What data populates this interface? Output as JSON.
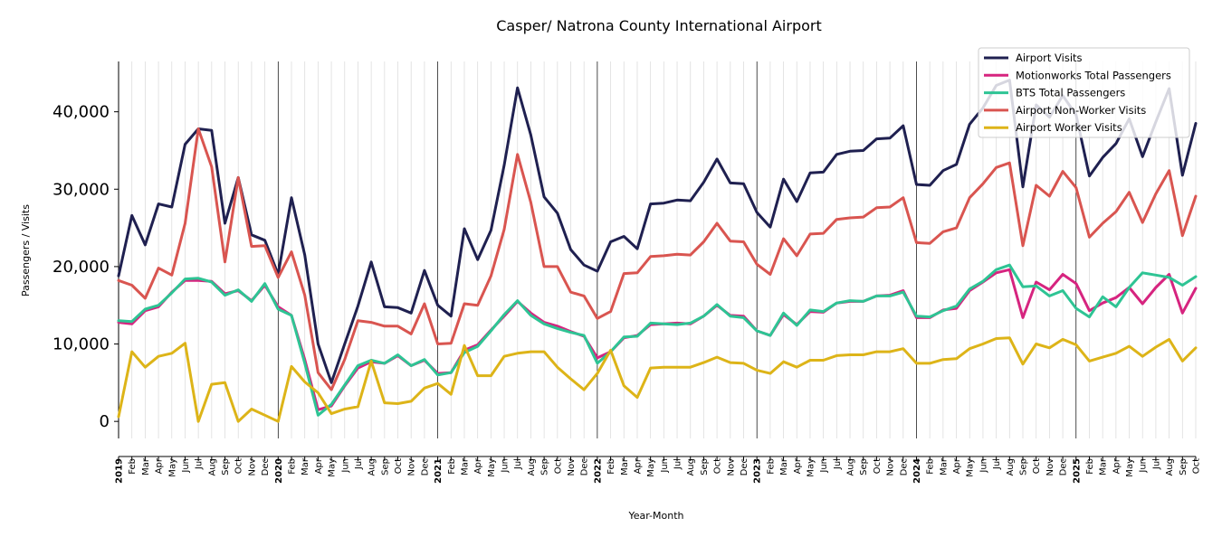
{
  "chart_data": {
    "type": "line",
    "title": "Casper/ Natrona County International Airport",
    "xlabel": "Year-Month",
    "ylabel": "Passengers / Visits",
    "ylim": [
      -2200,
      46500
    ],
    "yticks": [
      0,
      10000,
      20000,
      30000,
      40000
    ],
    "ytick_labels": [
      "0",
      "10,000",
      "20,000",
      "30,000",
      "40,000"
    ],
    "grid": "vertical monthly lines; bold lines at year starts",
    "legend_position": "top-right",
    "x": [
      "2019",
      "Feb",
      "Mar",
      "Apr",
      "May",
      "Jun",
      "Jul",
      "Aug",
      "Sep",
      "Oct",
      "Nov",
      "Dec",
      "2020",
      "Feb",
      "Mar",
      "Apr",
      "May",
      "Jun",
      "Jul",
      "Aug",
      "Sep",
      "Oct",
      "Nov",
      "Dec",
      "2021",
      "Feb",
      "Mar",
      "Apr",
      "May",
      "Jun",
      "Jul",
      "Aug",
      "Sep",
      "Oct",
      "Nov",
      "Dec",
      "2022",
      "Feb",
      "Mar",
      "Apr",
      "May",
      "Jun",
      "Jul",
      "Aug",
      "Sep",
      "Oct",
      "Nov",
      "Dec",
      "2023",
      "Feb",
      "Mar",
      "Apr",
      "May",
      "Jun",
      "Jul",
      "Aug",
      "Sep",
      "Oct",
      "Nov",
      "Dec",
      "2024",
      "Feb",
      "Mar",
      "Apr",
      "May",
      "Jun",
      "Jul",
      "Aug",
      "Sep",
      "Oct",
      "Nov",
      "Dec",
      "2025",
      "Feb",
      "Mar",
      "Apr",
      "May",
      "Jun",
      "Jul",
      "Aug",
      "Sep",
      "Oct"
    ],
    "year_labels": [
      "2019",
      "2020",
      "2021",
      "2022",
      "2023",
      "2024",
      "2025"
    ],
    "series": [
      {
        "name": "Airport Visits",
        "color": "#1f2050",
        "values": [
          18800,
          26600,
          22800,
          28100,
          27700,
          35800,
          37800,
          37600,
          25600,
          31500,
          24100,
          23400,
          19000,
          28900,
          21500,
          10000,
          5000,
          10000,
          14900,
          20600,
          14800,
          14700,
          14000,
          19500,
          15000,
          13600,
          24900,
          20900,
          24700,
          33100,
          43100,
          37000,
          29000,
          26900,
          22200,
          20200,
          19400,
          23200,
          23900,
          22300,
          28100,
          28200,
          28600,
          28500,
          30900,
          33900,
          30800,
          30700,
          27000,
          25100,
          31300,
          28400,
          32100,
          32200,
          34500,
          34900,
          35000,
          36500,
          36600,
          38200,
          30600,
          30500,
          32400,
          33200,
          38400,
          40500,
          43400,
          44100,
          30300,
          40900,
          39300,
          42100,
          39600,
          31700,
          34100,
          35900,
          39100,
          34200,
          38700,
          43000,
          31800,
          38500
        ]
      },
      {
        "name": "Motionworks Total Passengers",
        "color": "#d6247f",
        "values": [
          12800,
          12600,
          14300,
          14800,
          16700,
          18200,
          18200,
          18100,
          16500,
          16900,
          15600,
          17600,
          14800,
          13700,
          8000,
          1500,
          2000,
          4600,
          6900,
          7700,
          7500,
          8500,
          7200,
          7900,
          6200,
          6300,
          9200,
          9900,
          11800,
          13600,
          15500,
          14000,
          12800,
          12300,
          11600,
          11000,
          8200,
          9000,
          10800,
          11100,
          12500,
          12600,
          12700,
          12600,
          13600,
          15000,
          13700,
          13600,
          11700,
          11100,
          13800,
          12500,
          14200,
          14100,
          15300,
          15500,
          15500,
          16200,
          16300,
          16900,
          13400,
          13400,
          14400,
          14600,
          16900,
          18000,
          19200,
          19600,
          13400,
          18000,
          17000,
          19000,
          17800,
          14300,
          15300,
          16000,
          17300,
          15200,
          17300,
          19000,
          14000,
          17200
        ]
      },
      {
        "name": "BTS Total Passengers",
        "color": "#2ec494",
        "values": [
          13000,
          12900,
          14500,
          15000,
          16600,
          18400,
          18500,
          18000,
          16300,
          17000,
          15500,
          17800,
          14500,
          13700,
          7500,
          800,
          2200,
          4700,
          7200,
          7900,
          7500,
          8600,
          7200,
          8000,
          6000,
          6300,
          8900,
          9700,
          11700,
          13800,
          15600,
          13700,
          12600,
          12000,
          11500,
          11100,
          7500,
          9000,
          10900,
          11000,
          12700,
          12600,
          12500,
          12700,
          13600,
          15100,
          13600,
          13400,
          11700,
          11100,
          14000,
          12400,
          14400,
          14200,
          15300,
          15600,
          15500,
          16200,
          16200,
          16700,
          13600,
          13500,
          14300,
          14900,
          17100,
          18100,
          19600,
          20200,
          17400,
          17500,
          16200,
          16900,
          14600,
          13500,
          16100,
          14800,
          17300,
          19200,
          18900,
          18600,
          17600,
          18700
        ]
      },
      {
        "name": "Airport Non-Worker Visits",
        "color": "#d95550",
        "values": [
          18200,
          17600,
          15900,
          19800,
          18900,
          25600,
          37800,
          32900,
          20600,
          31500,
          22600,
          22700,
          18600,
          21900,
          16300,
          6300,
          4100,
          8000,
          13000,
          12800,
          12300,
          12300,
          11300,
          15200,
          10000,
          10100,
          15200,
          15000,
          18800,
          24800,
          34500,
          28300,
          20000,
          20000,
          16700,
          16200,
          13300,
          14200,
          19100,
          19200,
          21300,
          21400,
          21600,
          21500,
          23200,
          25600,
          23300,
          23200,
          20300,
          19000,
          23600,
          21400,
          24200,
          24300,
          26100,
          26300,
          26400,
          27600,
          27700,
          28900,
          23100,
          23000,
          24500,
          25000,
          28900,
          30700,
          32800,
          33400,
          22700,
          30500,
          29100,
          32300,
          30200,
          23800,
          25600,
          27100,
          29600,
          25700,
          29400,
          32400,
          24000,
          29100
        ]
      },
      {
        "name": "Airport Worker Visits",
        "color": "#ddb418",
        "values": [
          600,
          9000,
          7000,
          8400,
          8800,
          10100,
          0,
          4800,
          5000,
          0,
          1600,
          800,
          0,
          7100,
          5100,
          3700,
          1000,
          1600,
          1900,
          7800,
          2400,
          2300,
          2600,
          4300,
          4900,
          3500,
          9800,
          5900,
          5900,
          8400,
          8800,
          9000,
          9000,
          7000,
          5500,
          4100,
          6200,
          9200,
          4600,
          3100,
          6900,
          7000,
          7000,
          7000,
          7600,
          8300,
          7600,
          7500,
          6600,
          6200,
          7700,
          7000,
          7900,
          7900,
          8500,
          8600,
          8600,
          9000,
          9000,
          9400,
          7500,
          7500,
          8000,
          8100,
          9400,
          10000,
          10700,
          10800,
          7400,
          10000,
          9500,
          10600,
          9900,
          7800,
          8300,
          8800,
          9700,
          8400,
          9600,
          10600,
          7800,
          9500
        ]
      }
    ]
  }
}
